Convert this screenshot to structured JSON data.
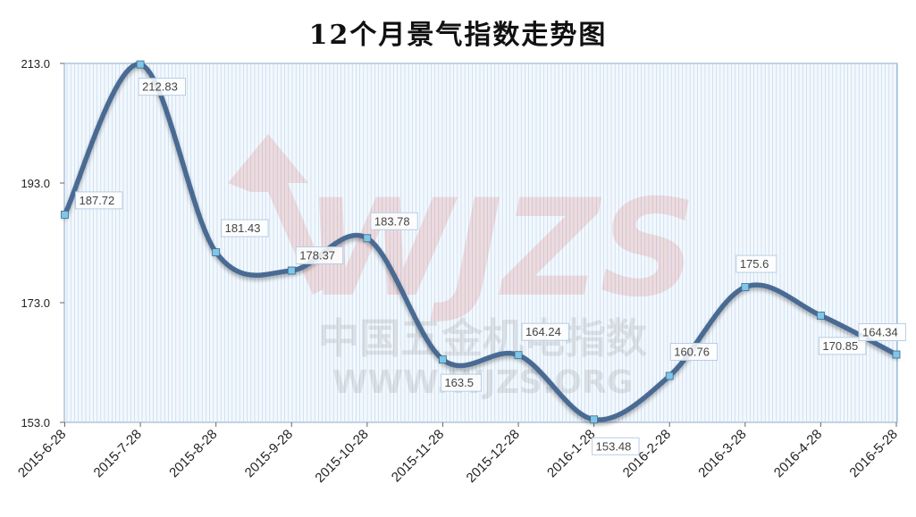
{
  "chart_data": {
    "type": "line",
    "title": "12个月景气指数走势图",
    "categories": [
      "2015-6-28",
      "2015-7-28",
      "2015-8-28",
      "2015-9-28",
      "2015-10-28",
      "2015-11-28",
      "2015-12-28",
      "2016-1-28",
      "2016-2-28",
      "2016-3-28",
      "2016-4-28",
      "2016-5-28"
    ],
    "values": [
      187.72,
      212.83,
      181.43,
      178.37,
      183.78,
      163.5,
      164.24,
      153.48,
      160.76,
      175.6,
      170.85,
      164.34
    ],
    "data_labels": [
      "187.72",
      "212.83",
      "181.43",
      "178.37",
      "183.78",
      "163.5",
      "164.24",
      "153.48",
      "160.76",
      "175.6",
      "170.85",
      "164.34"
    ],
    "y_ticks": [
      "153.0",
      "173.0",
      "193.0",
      "213.0"
    ],
    "ylim": [
      153,
      213
    ],
    "xlabel": "",
    "ylabel": "",
    "grid": "vertical",
    "smooth": true,
    "colors": {
      "line": "#4a6a93",
      "marker_fill": "#7fc6e8",
      "grid": "#b9d3ea",
      "plot_bg": "#f3f8fd",
      "label_border": "#b8cde3"
    }
  },
  "watermark": {
    "logo": "WJZS",
    "line1": "中国五金机电指数",
    "line2": "WWW.WJZS.ORG"
  }
}
